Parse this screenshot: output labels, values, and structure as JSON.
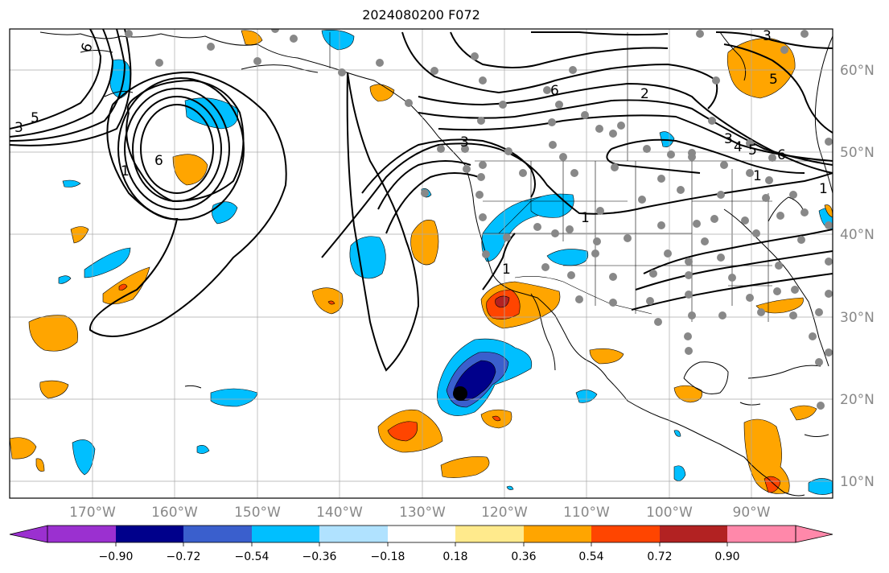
{
  "title": "2024080200 F072",
  "map": {
    "lon_labels": [
      "170°W",
      "160°W",
      "150°W",
      "140°W",
      "130°W",
      "120°W",
      "110°W",
      "100°W",
      "90°W"
    ],
    "lat_labels": [
      "60°N",
      "50°N",
      "40°N",
      "30°N",
      "20°N",
      "10°N"
    ],
    "contour_labels": [
      "6",
      "5",
      "3",
      "1",
      "6",
      "3",
      "1",
      "1",
      "6",
      "2",
      "3",
      "4",
      "5",
      "6",
      "1",
      "1",
      "3",
      "5"
    ],
    "fill_colors": {
      "purple": "#9b30d0",
      "navy": "#00008b",
      "royal": "#3a5fcd",
      "cyan": "#00bfff",
      "lightblue": "#b0e2ff",
      "white": "#ffffff",
      "lightyellow": "#ffea8c",
      "orange": "#ffa500",
      "red": "#ff4500",
      "darkred": "#b22222",
      "pink": "#ff88aa"
    },
    "station_color": "#888888"
  },
  "colorbar": {
    "ticks": [
      "−0.90",
      "−0.72",
      "−0.54",
      "−0.36",
      "−0.18",
      "0.18",
      "0.36",
      "0.54",
      "0.72",
      "0.90"
    ],
    "colors": [
      "#9b30d0",
      "#00008b",
      "#3a5fcd",
      "#00bfff",
      "#b0e2ff",
      "#ffffff",
      "#ffea8c",
      "#ffa500",
      "#ff4500",
      "#b22222",
      "#ff88aa"
    ]
  }
}
